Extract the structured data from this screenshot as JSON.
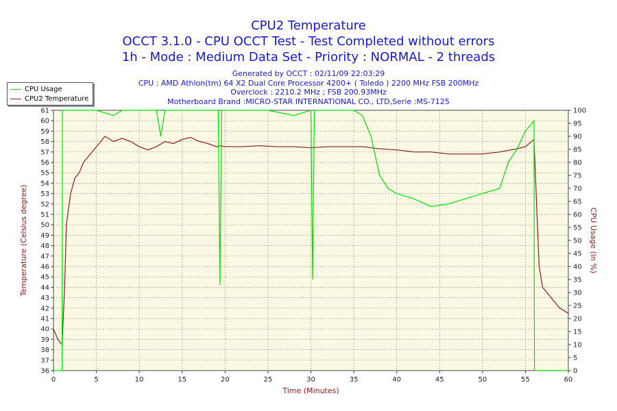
{
  "header": {
    "title": "CPU2 Temperature",
    "subtitle1": "OCCT 3.1.0 - CPU OCCT Test - Test Completed without errors",
    "subtitle2": "1h - Mode : Medium Data Set - Priority : NORMAL - 2 threads"
  },
  "info": {
    "generated": "Generated by OCCT : 02/11/09 22:03:29",
    "cpu": "CPU : AMD Athlon(tm) 64 X2 Dual Core Processor 4200+ ( Toledo ) 2200 MHz FSB 200MHz",
    "overclock": "Overclock : 2210.2 MHz ; FSB 200.93MHz",
    "motherboard": "Motherboard Brand :MICRO-STAR INTERNATIONAL CO., LTD,Serie :MS-7125"
  },
  "legend": {
    "usage_label": "CPU Usage",
    "temp_label": "CPU2 Temperature"
  },
  "colors": {
    "usage": "#00e000",
    "temperature": "#8b1a1a",
    "plot_bg": "#fbf8e3",
    "grid": "#9a9a8a",
    "title": "#1818c8"
  },
  "chart_data": {
    "type": "line",
    "title": "CPU2 Temperature",
    "xlabel": "Time (Minutes)",
    "ylabel_left": "Temperature (Celsius degree)",
    "ylabel_right": "CPU Usage (in %)",
    "xlim": [
      0,
      60
    ],
    "ylim_left": [
      36,
      61
    ],
    "ylim_right": [
      0,
      100
    ],
    "x_ticks": [
      0,
      5,
      10,
      15,
      20,
      25,
      30,
      35,
      40,
      45,
      50,
      55,
      60
    ],
    "y_ticks_left": [
      36,
      37,
      38,
      39,
      40,
      41,
      42,
      43,
      44,
      45,
      46,
      47,
      48,
      49,
      50,
      51,
      52,
      53,
      54,
      55,
      56,
      57,
      58,
      59,
      60,
      61
    ],
    "y_ticks_right": [
      0,
      5,
      10,
      15,
      20,
      25,
      30,
      35,
      40,
      45,
      50,
      55,
      60,
      65,
      70,
      75,
      80,
      85,
      90,
      95,
      100
    ],
    "grid": true,
    "legend_position": "top-left",
    "series": [
      {
        "name": "CPU2 Temperature",
        "axis": "left",
        "x": [
          0,
          0.5,
          1,
          1.3,
          1.5,
          2,
          2.5,
          3,
          3.5,
          4,
          5,
          6,
          7,
          8,
          9,
          10,
          11,
          12,
          13,
          14,
          15,
          16,
          17,
          18,
          19,
          19.5,
          20,
          22,
          24,
          26,
          28,
          30,
          32,
          34,
          36,
          38,
          40,
          42,
          44,
          46,
          48,
          50,
          52,
          54,
          55,
          56,
          56.3,
          56.6,
          57,
          57.5,
          58,
          59,
          60
        ],
        "values": [
          40,
          39,
          38.5,
          44,
          50,
          53,
          54.5,
          55,
          56,
          56.5,
          57.5,
          58.5,
          58,
          58.3,
          58,
          57.5,
          57.2,
          57.5,
          58,
          57.8,
          58.2,
          58.4,
          58,
          57.8,
          57.5,
          57.6,
          57.5,
          57.5,
          57.6,
          57.5,
          57.5,
          57.4,
          57.5,
          57.5,
          57.5,
          57.3,
          57.2,
          57,
          57,
          56.8,
          56.8,
          56.8,
          57,
          57.3,
          57.5,
          58.2,
          52,
          46,
          44,
          43.5,
          43,
          42,
          41.5
        ]
      },
      {
        "name": "CPU Usage",
        "axis": "right",
        "x": [
          0,
          1,
          1.05,
          1.2,
          5,
          7,
          8,
          10,
          12,
          12.5,
          13,
          15,
          19.2,
          19.4,
          19.6,
          20,
          25,
          28,
          30,
          30.2,
          30.4,
          31,
          35,
          36,
          37,
          38,
          39,
          40,
          42,
          44,
          46,
          48,
          50,
          52,
          53,
          54,
          55,
          56,
          56.05,
          56.2,
          60
        ],
        "values": [
          0,
          0,
          100,
          100,
          100,
          98,
          100,
          100,
          100,
          90,
          100,
          100,
          100,
          33,
          100,
          100,
          100,
          98,
          100,
          35,
          100,
          100,
          100,
          98,
          90,
          75,
          70,
          68,
          66,
          63,
          64,
          66,
          68,
          70,
          80,
          85,
          92,
          96,
          0,
          0,
          0
        ]
      }
    ]
  }
}
